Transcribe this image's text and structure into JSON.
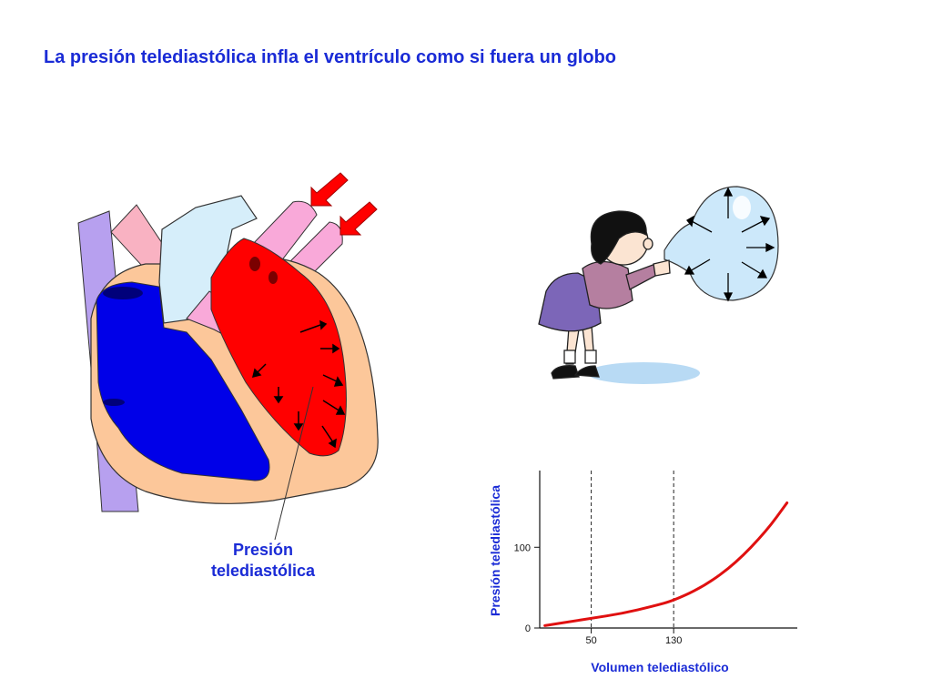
{
  "slide": {
    "title": "La presión telediastólica infla el ventrículo como si fuera un globo"
  },
  "heart": {
    "label_line1": "Presión",
    "label_line2": "telediastólica",
    "colors": {
      "left_ventricle": "#ff0000",
      "right_ventricle": "#0000e8",
      "myocardium": "#fcc79a",
      "vena_cava": "#b7a0ef",
      "pulmonary_veins": "#f9a9d9",
      "aorta": "#d6eefa",
      "pulmonary_artery": "#f9b2c2",
      "inflow_arrows": "#ff0000"
    }
  },
  "balloon_illustration": {
    "icons": [
      "child-icon",
      "balloon-icon",
      "pressure-arrow-icon"
    ]
  },
  "chart_data": {
    "type": "line",
    "xlabel": "Volumen telediastólico",
    "ylabel": "Presión telediastólica",
    "x_ticks": [
      50,
      130
    ],
    "y_ticks": [
      0,
      100
    ],
    "xlim": [
      0,
      250
    ],
    "ylim": [
      0,
      195
    ],
    "reference_lines_x": [
      50,
      130
    ],
    "series": [
      {
        "color": "#e01010",
        "x": [
          5,
          30,
          50,
          80,
          110,
          130,
          160,
          190,
          220,
          240
        ],
        "y": [
          3,
          8,
          12,
          18,
          27,
          34,
          52,
          80,
          120,
          155
        ]
      }
    ]
  }
}
